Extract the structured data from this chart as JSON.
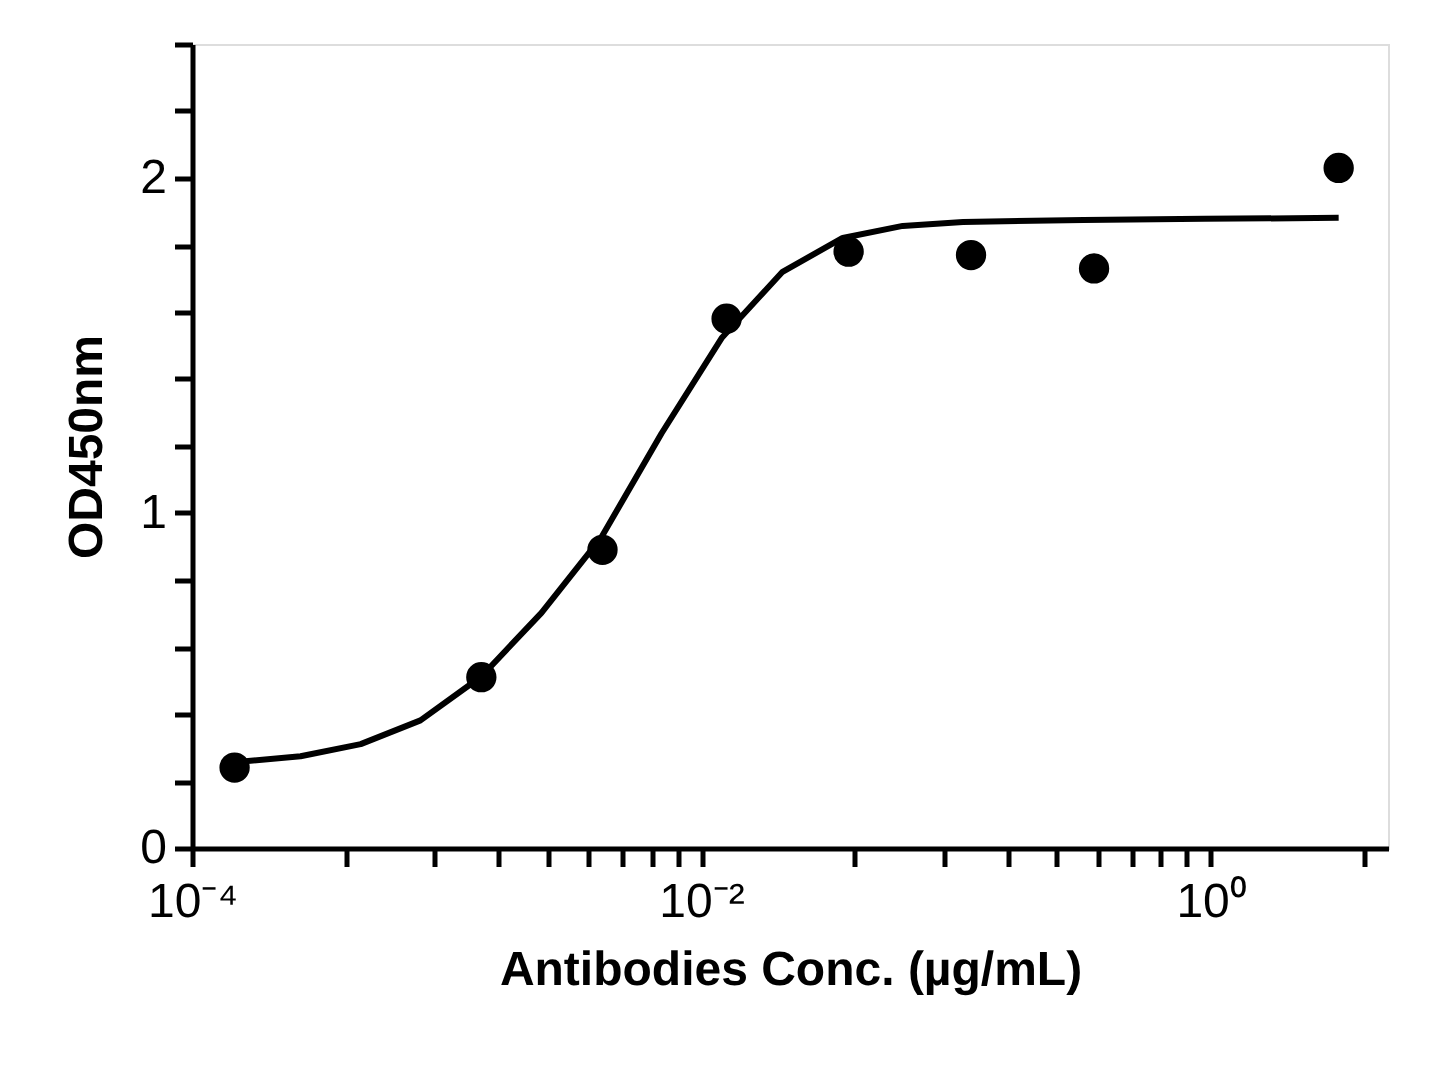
{
  "chart_data": {
    "type": "scatter",
    "xlabel": "Antibodies Conc. (µg/mL)",
    "ylabel": "OD450nm",
    "log": "x",
    "grid": false,
    "marker": "circle",
    "xlim": [
      0.0001,
      5
    ],
    "xticks": [
      {
        "value": 0.0001,
        "label": "10⁻⁴"
      },
      {
        "value": 0.0004,
        "label": null
      },
      {
        "value": 0.0009,
        "label": null
      },
      {
        "value": 0.0016,
        "label": null
      },
      {
        "value": 0.0025,
        "label": null
      },
      {
        "value": 0.0036,
        "label": null
      },
      {
        "value": 0.0049,
        "label": null
      },
      {
        "value": 0.0064,
        "label": null
      },
      {
        "value": 0.0081,
        "label": null
      },
      {
        "value": 0.01,
        "label": "10⁻²"
      },
      {
        "value": 0.04,
        "label": null
      },
      {
        "value": 0.09,
        "label": null
      },
      {
        "value": 0.16,
        "label": null
      },
      {
        "value": 0.25,
        "label": null
      },
      {
        "value": 0.36,
        "label": null
      },
      {
        "value": 0.49,
        "label": null
      },
      {
        "value": 0.64,
        "label": null
      },
      {
        "value": 0.81,
        "label": null
      },
      {
        "value": 1,
        "label": "10⁰"
      },
      {
        "value": 4,
        "label": null
      }
    ],
    "ylim": [
      0,
      2.4
    ],
    "yticks": [
      0,
      {
        "value": 0.2,
        "label": null
      },
      {
        "value": 0.4,
        "label": null
      },
      {
        "value": 0.6,
        "label": null
      },
      {
        "value": 0.8,
        "label": null
      },
      1,
      {
        "value": 1.2,
        "label": null
      },
      {
        "value": 1.4,
        "label": null
      },
      {
        "value": 1.6,
        "label": null
      },
      {
        "value": 1.8,
        "label": null
      },
      2,
      {
        "value": 2.2,
        "label": null
      },
      {
        "value": 2.4,
        "label": null
      }
    ],
    "series": [
      {
        "type": "line",
        "color": "#000000",
        "marker": "none",
        "x": [
          0.000147,
          0.000267,
          0.00046,
          0.00079,
          0.00137,
          0.00236,
          0.00407,
          0.007,
          0.0121,
          0.0209,
          0.036,
          0.062,
          0.107,
          0.318,
          0.95,
          3.2
        ],
        "values": [
          0.256,
          0.274,
          0.31,
          0.381,
          0.512,
          0.702,
          0.929,
          1.238,
          1.524,
          1.72,
          1.821,
          1.857,
          1.869,
          1.875,
          1.878,
          1.881
        ]
      },
      {
        "color": "#000000",
        "x": [
          0.000147,
          0.00137,
          0.0041,
          0.0126,
          0.038,
          0.115,
          0.35,
          3.2
        ],
        "values": [
          0.24,
          0.51,
          0.89,
          1.58,
          1.78,
          1.77,
          1.73,
          2.03
        ]
      }
    ]
  }
}
